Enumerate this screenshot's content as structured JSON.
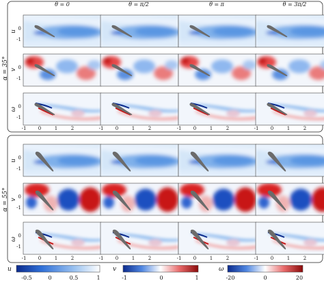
{
  "column_headers": [
    "θ = 0",
    "θ = π/2",
    "θ = π",
    "θ = 3π/2"
  ],
  "groups": [
    {
      "label": "α = 35°",
      "rows": [
        "u",
        "v",
        "ω"
      ]
    },
    {
      "label": "α = 55°",
      "rows": [
        "u",
        "v",
        "ω"
      ]
    }
  ],
  "x_ticks": [
    "-1",
    "0",
    "1",
    "2"
  ],
  "y_ticks": [
    "0",
    "-1"
  ],
  "colorbars": [
    {
      "symbol": "u",
      "ticks": [
        "-0.5",
        "0",
        "0.5",
        "1"
      ],
      "range": [
        -0.75,
        1
      ],
      "colormap": "blue-white"
    },
    {
      "symbol": "v",
      "ticks": [
        "-1",
        "0",
        "1"
      ],
      "range": [
        -1,
        1
      ],
      "colormap": "blue-white-red"
    },
    {
      "symbol": "ω",
      "ticks": [
        "-20",
        "0",
        "20"
      ],
      "range": [
        -20,
        20
      ],
      "colormap": "blue-white-red"
    }
  ],
  "colors": {
    "blue_dark": "#0b2a8c",
    "blue": "#2f6fd6",
    "blue_light": "#9cc3f0",
    "red": "#d0201f",
    "red_light": "#f2a0a0",
    "airfoil": "#6b6b6b",
    "frame": "#555555"
  }
}
